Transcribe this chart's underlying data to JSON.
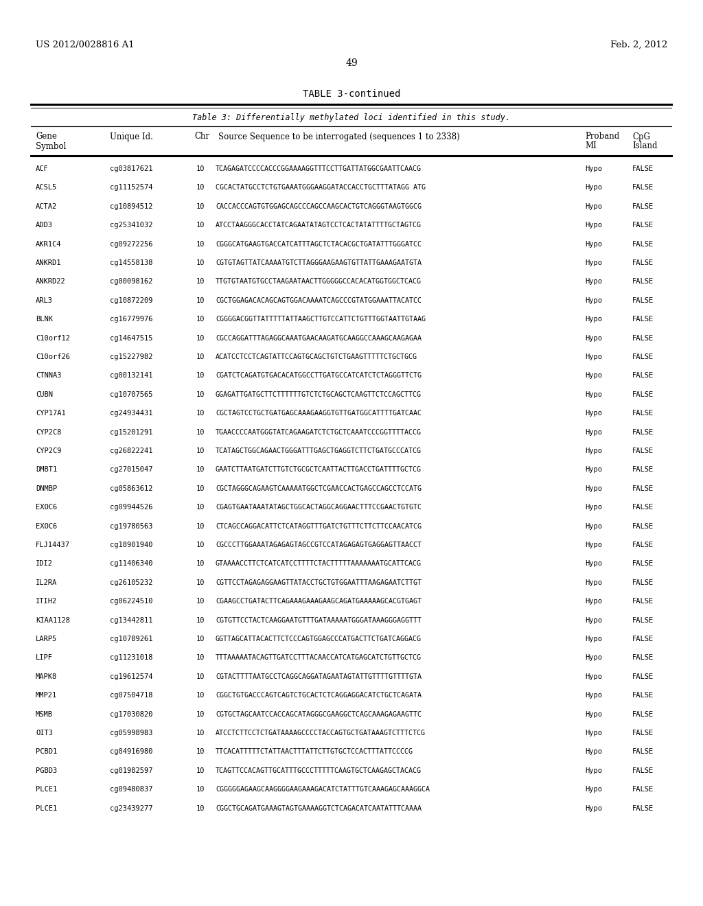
{
  "header_left": "US 2012/0028816 A1",
  "header_right": "Feb. 2, 2012",
  "page_number": "49",
  "table_title": "TABLE 3-continued",
  "table_subtitle": "Table 3: Differentially methylated loci identified in this study.",
  "rows": [
    [
      "ACF",
      "cg03817621",
      "10",
      "TCAGAGATCCCCACCCGGAAAAGGTTTCCTTGATTATGGCGAATTCAACG",
      "Hypo",
      "FALSE"
    ],
    [
      "ACSL5",
      "cg11152574",
      "10",
      "CGCACTATGCCTCTGTGAAATGGGAAGGATACCACCTGCTTTATAGG ATG",
      "Hypo",
      "FALSE"
    ],
    [
      "ACTA2",
      "cg10894512",
      "10",
      "CACCACCCAGTGTGGAGCAGCCCAGCCAAGCACTGTCAGGGTAAGTGGCG",
      "Hypo",
      "FALSE"
    ],
    [
      "ADD3",
      "cg25341032",
      "10",
      "ATCCTAAGGGCACCTATCAGAATATAGTCCTCACTATATTTTGCTAGTCG",
      "Hypo",
      "FALSE"
    ],
    [
      "AKR1C4",
      "cg09272256",
      "10",
      "CGGGCATGAAGTGACCATCATTTAGCTCTACACGCTGATATTTGGGATCC",
      "Hypo",
      "FALSE"
    ],
    [
      "ANKRD1",
      "cg14558138",
      "10",
      "CGTGTAGTTATCAAAATGTCTTAGGGAAGAAGTGTTATTGAAAGAATGTA",
      "Hypo",
      "FALSE"
    ],
    [
      "ANKRD22",
      "cg00098162",
      "10",
      "TTGTGTAATGTGCCTAAGAATAACTTGGGGGCCACACATGGTGGCTCACG",
      "Hypo",
      "FALSE"
    ],
    [
      "ARL3",
      "cg10872209",
      "10",
      "CGCTGGAGACACAGCAGTGGACAAAATCAGCCCGTATGGAAATTACATCC",
      "Hypo",
      "FALSE"
    ],
    [
      "BLNK",
      "cg16779976",
      "10",
      "CGGGGACGGTTATTTTTATTAAGCTTGTCCATTCTGTTTGGTAATTGTAAG",
      "Hypo",
      "FALSE"
    ],
    [
      "C10orf12",
      "cg14647515",
      "10",
      "CGCCAGGATTTAGAGGCAAATGAACAAGATGCAAGGCCAAAGCAAGAGAA",
      "Hypo",
      "FALSE"
    ],
    [
      "C10orf26",
      "cg15227982",
      "10",
      "ACATCCTCCTCAGTATTCCAGTGCAGCTGTCTGAAGTTTTTCTGCTGCG",
      "Hypo",
      "FALSE"
    ],
    [
      "CTNNA3",
      "cg00132141",
      "10",
      "CGATCTCAGATGTGACACATGGCCTTGATGCCATCATCTCTAGGGTTCTG",
      "Hypo",
      "FALSE"
    ],
    [
      "CUBN",
      "cg10707565",
      "10",
      "GGAGATTGATGCTTCTTTTTTGTCTCTGCAGCTCAAGTTCTCCAGCTTCG",
      "Hypo",
      "FALSE"
    ],
    [
      "CYP17A1",
      "cg24934431",
      "10",
      "CGCTAGTCCTGCTGATGAGCAAAGAAGGTGTTGATGGCATTTTGATCAAC",
      "Hypo",
      "FALSE"
    ],
    [
      "CYP2C8",
      "cg15201291",
      "10",
      "TGAACCCCAATGGGTATCAGAAGATCTCTGCTCAAATCCCGGTTTTACCG",
      "Hypo",
      "FALSE"
    ],
    [
      "CYP2C9",
      "cg26822241",
      "10",
      "TCATAGCTGGCAGAACTGGGATTTGAGCTGAGGTCTTCTGATGCCCATCG",
      "Hypo",
      "FALSE"
    ],
    [
      "DMBT1",
      "cg27015047",
      "10",
      "GAATCTTAATGATCTTGTCTGCGCTCAATTACTTGACCTGATTTTGCTCG",
      "Hypo",
      "FALSE"
    ],
    [
      "DNMBP",
      "cg05863612",
      "10",
      "CGCTAGGGCAGAAGTCAAAAATGGCTCGAACCACTGAGCCAGCCTCCATG",
      "Hypo",
      "FALSE"
    ],
    [
      "EXOC6",
      "cg09944526",
      "10",
      "CGAGTGAATAAATATAGCTGGCACTAGGCAGGAACTTTCCGAACTGTGTC",
      "Hypo",
      "FALSE"
    ],
    [
      "EXOC6",
      "cg19780563",
      "10",
      "CTCAGCCAGGACATTCTCATAGGTTTGATCTGTTTCTTCTTCCAACATCG",
      "Hypo",
      "FALSE"
    ],
    [
      "FLJ14437",
      "cg18901940",
      "10",
      "CGCCCTTGGAAATAGAGAGTAGCCGTCCATAGAGAGTGAGGAGTTAACCT",
      "Hypo",
      "FALSE"
    ],
    [
      "IDI2",
      "cg11406340",
      "10",
      "GTAAAACCTTCTCATCATCCTTTTCTACTTTTTAAAAAAATGCATTCACG",
      "Hypo",
      "FALSE"
    ],
    [
      "IL2RA",
      "cg26105232",
      "10",
      "CGTTCCTAGAGAGGAAGTTATACCTGCTGTGGAATTTAAGAGAATCTTGT",
      "Hypo",
      "FALSE"
    ],
    [
      "ITIH2",
      "cg06224510",
      "10",
      "CGAAGCCTGATACTTCAGAAAGAAAGAAGCAGATGAAAAAGCACGTGAGT",
      "Hypo",
      "FALSE"
    ],
    [
      "KIAA1128",
      "cg13442811",
      "10",
      "CGTGTTCCTACTCAAGGAATGTTTGATAAAAATGGGATAAAGGGAGGTTT",
      "Hypo",
      "FALSE"
    ],
    [
      "LARP5",
      "cg10789261",
      "10",
      "GGTTAGCATTACACTTCTCCCAGTGGAGCCCATGACTTCTGATCAGGACG",
      "Hypo",
      "FALSE"
    ],
    [
      "LIPF",
      "cg11231018",
      "10",
      "TTTAAAAATACAGTTGATCCTTTACAACCATCATGAGCATCTGTTGCTCG",
      "Hypo",
      "FALSE"
    ],
    [
      "MAPK8",
      "cg19612574",
      "10",
      "CGTACTTTTAATGCCTCAGGCAGGATAGAATAGTATTGTTTTGTTTTGTA",
      "Hypo",
      "FALSE"
    ],
    [
      "MMP21",
      "cg07504718",
      "10",
      "CGGCTGTGACCCAGTCAGTCTGCACTCTCAGGAGGACATCTGCTCAGATA",
      "Hypo",
      "FALSE"
    ],
    [
      "MSMB",
      "cg17030820",
      "10",
      "CGTGCTAGCAATCCACCAGCATAGGGCGAAGGCTCAGCAAAGAGAAGTTC",
      "Hypo",
      "FALSE"
    ],
    [
      "OIT3",
      "cg05998983",
      "10",
      "ATCCTCTTCCTCTGATAAAAGCCCCTACCAGTGCTGATAAAGTCTTTCTCG",
      "Hypo",
      "FALSE"
    ],
    [
      "PCBD1",
      "cg04916980",
      "10",
      "TTCACATTTTTCTATTAACTTTATTCTTGTGCTCCACTTTATTCCCCG",
      "Hypo",
      "FALSE"
    ],
    [
      "PGBD3",
      "cg01982597",
      "10",
      "TCAGTTCCACAGTTGCATTTGCCCTTTTTCAAGTGCTCAAGAGCTACACG",
      "Hypo",
      "FALSE"
    ],
    [
      "PLCE1",
      "cg09480837",
      "10",
      "CGGGGGAGAAGCAAGGGGAAGAAAGACATCTATTTGTCAAAGAGCAAAGGCA",
      "Hypo",
      "FALSE"
    ],
    [
      "PLCE1",
      "cg23439277",
      "10",
      "CGGCTGCAGATGAAAGTAGTGAAAAGGTCTCAGACATCAATATTTCAAAA",
      "Hypo",
      "FALSE"
    ]
  ]
}
